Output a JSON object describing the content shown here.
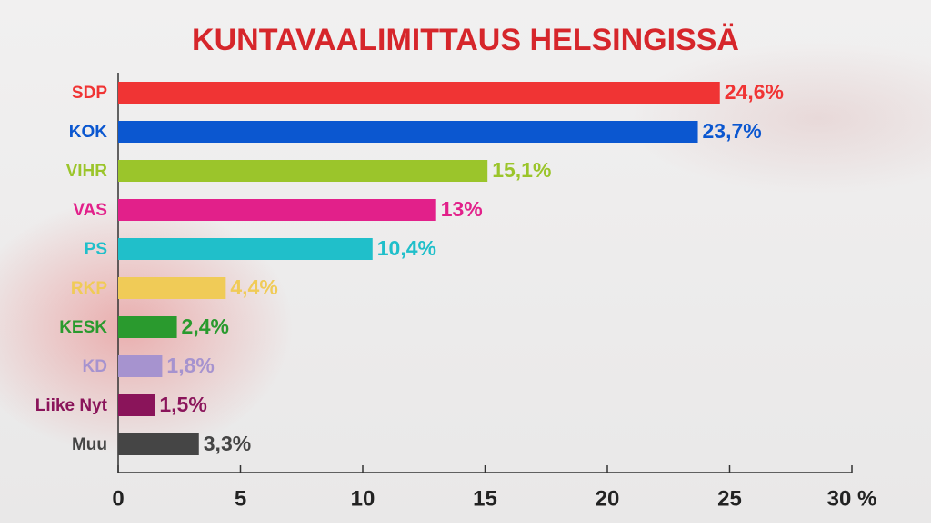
{
  "chart_data": {
    "type": "hbar",
    "title": "KUNTAVAALIMITTAUS HELSINGISSÄ",
    "categories": [
      "SDP",
      "KOK",
      "VIHR",
      "VAS",
      "PS",
      "RKP",
      "KESK",
      "KD",
      "Liike Nyt",
      "Muu"
    ],
    "values": [
      24.6,
      23.7,
      15.1,
      13,
      10.4,
      4.4,
      2.4,
      1.8,
      1.5,
      3.3
    ],
    "value_labels": [
      "24,6%",
      "23,7%",
      "15,1%",
      "13%",
      "10,4%",
      "4,4%",
      "2,4%",
      "1,8%",
      "1,5%",
      "3,3%"
    ],
    "colors": [
      "#f03434",
      "#0b57d0",
      "#9bc52b",
      "#e2208a",
      "#20bfca",
      "#f0cb57",
      "#2a9a2e",
      "#a693cf",
      "#8a145a",
      "#454545"
    ],
    "xlim": [
      0,
      30
    ],
    "xticks": [
      0,
      5,
      10,
      15,
      20,
      25,
      {
        "value": 30,
        "label": "30 %"
      }
    ],
    "title_color": "#d6262b"
  }
}
